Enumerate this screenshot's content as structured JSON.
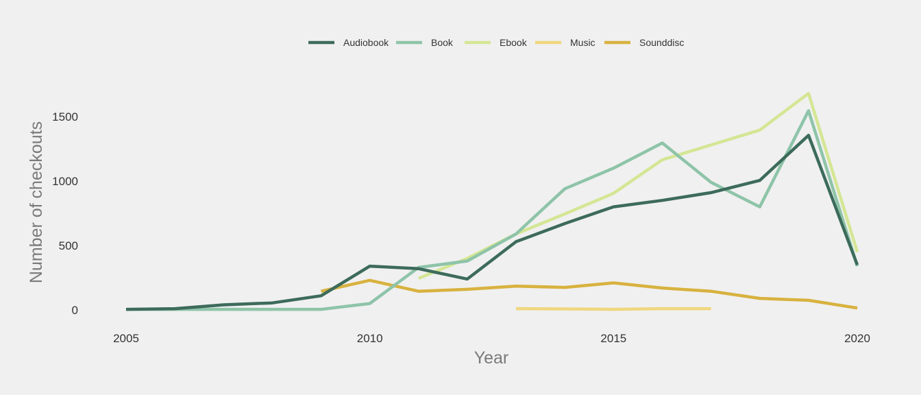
{
  "chart_data": {
    "type": "line",
    "title": "",
    "xlabel": "Year",
    "ylabel": "Number of checkouts",
    "xlim": [
      2005,
      2020
    ],
    "ylim": [
      0,
      1800
    ],
    "x_ticks": [
      2005,
      2010,
      2015,
      2020
    ],
    "y_ticks": [
      0,
      500,
      1000,
      1500
    ],
    "grid": false,
    "legend_position": "top",
    "series": [
      {
        "name": "Audiobook",
        "color": "#3d6b5b",
        "points": [
          [
            2005,
            5
          ],
          [
            2006,
            10
          ],
          [
            2007,
            40
          ],
          [
            2008,
            55
          ],
          [
            2009,
            110
          ],
          [
            2010,
            340
          ],
          [
            2011,
            320
          ],
          [
            2012,
            240
          ],
          [
            2013,
            530
          ],
          [
            2014,
            670
          ],
          [
            2015,
            800
          ],
          [
            2016,
            850
          ],
          [
            2017,
            910
          ],
          [
            2018,
            1005
          ],
          [
            2019,
            1355
          ],
          [
            2020,
            350
          ]
        ]
      },
      {
        "name": "Book",
        "color": "#8ec4a9",
        "points": [
          [
            2005,
            5
          ],
          [
            2006,
            5
          ],
          [
            2007,
            5
          ],
          [
            2008,
            5
          ],
          [
            2009,
            5
          ],
          [
            2010,
            50
          ],
          [
            2011,
            330
          ],
          [
            2012,
            380
          ],
          [
            2013,
            590
          ],
          [
            2014,
            940
          ],
          [
            2015,
            1100
          ],
          [
            2016,
            1295
          ],
          [
            2017,
            990
          ],
          [
            2018,
            800
          ],
          [
            2019,
            1545
          ],
          [
            2020,
            340
          ]
        ]
      },
      {
        "name": "Ebook",
        "color": "#d4e694",
        "points": [
          [
            2011,
            245
          ],
          [
            2012,
            400
          ],
          [
            2013,
            590
          ],
          [
            2014,
            745
          ],
          [
            2015,
            905
          ],
          [
            2016,
            1165
          ],
          [
            2017,
            1280
          ],
          [
            2018,
            1395
          ],
          [
            2019,
            1680
          ],
          [
            2020,
            450
          ]
        ]
      },
      {
        "name": "Music",
        "color": "#f0d67e",
        "points": [
          [
            2013,
            10
          ],
          [
            2014,
            8
          ],
          [
            2015,
            5
          ],
          [
            2016,
            10
          ],
          [
            2017,
            10
          ]
        ]
      },
      {
        "name": "Sounddisc",
        "color": "#d8b23f",
        "points": [
          [
            2009,
            145
          ],
          [
            2010,
            230
          ],
          [
            2011,
            145
          ],
          [
            2012,
            160
          ],
          [
            2013,
            185
          ],
          [
            2014,
            175
          ],
          [
            2015,
            210
          ],
          [
            2016,
            170
          ],
          [
            2017,
            145
          ],
          [
            2018,
            90
          ],
          [
            2019,
            75
          ],
          [
            2020,
            15
          ]
        ]
      }
    ]
  }
}
